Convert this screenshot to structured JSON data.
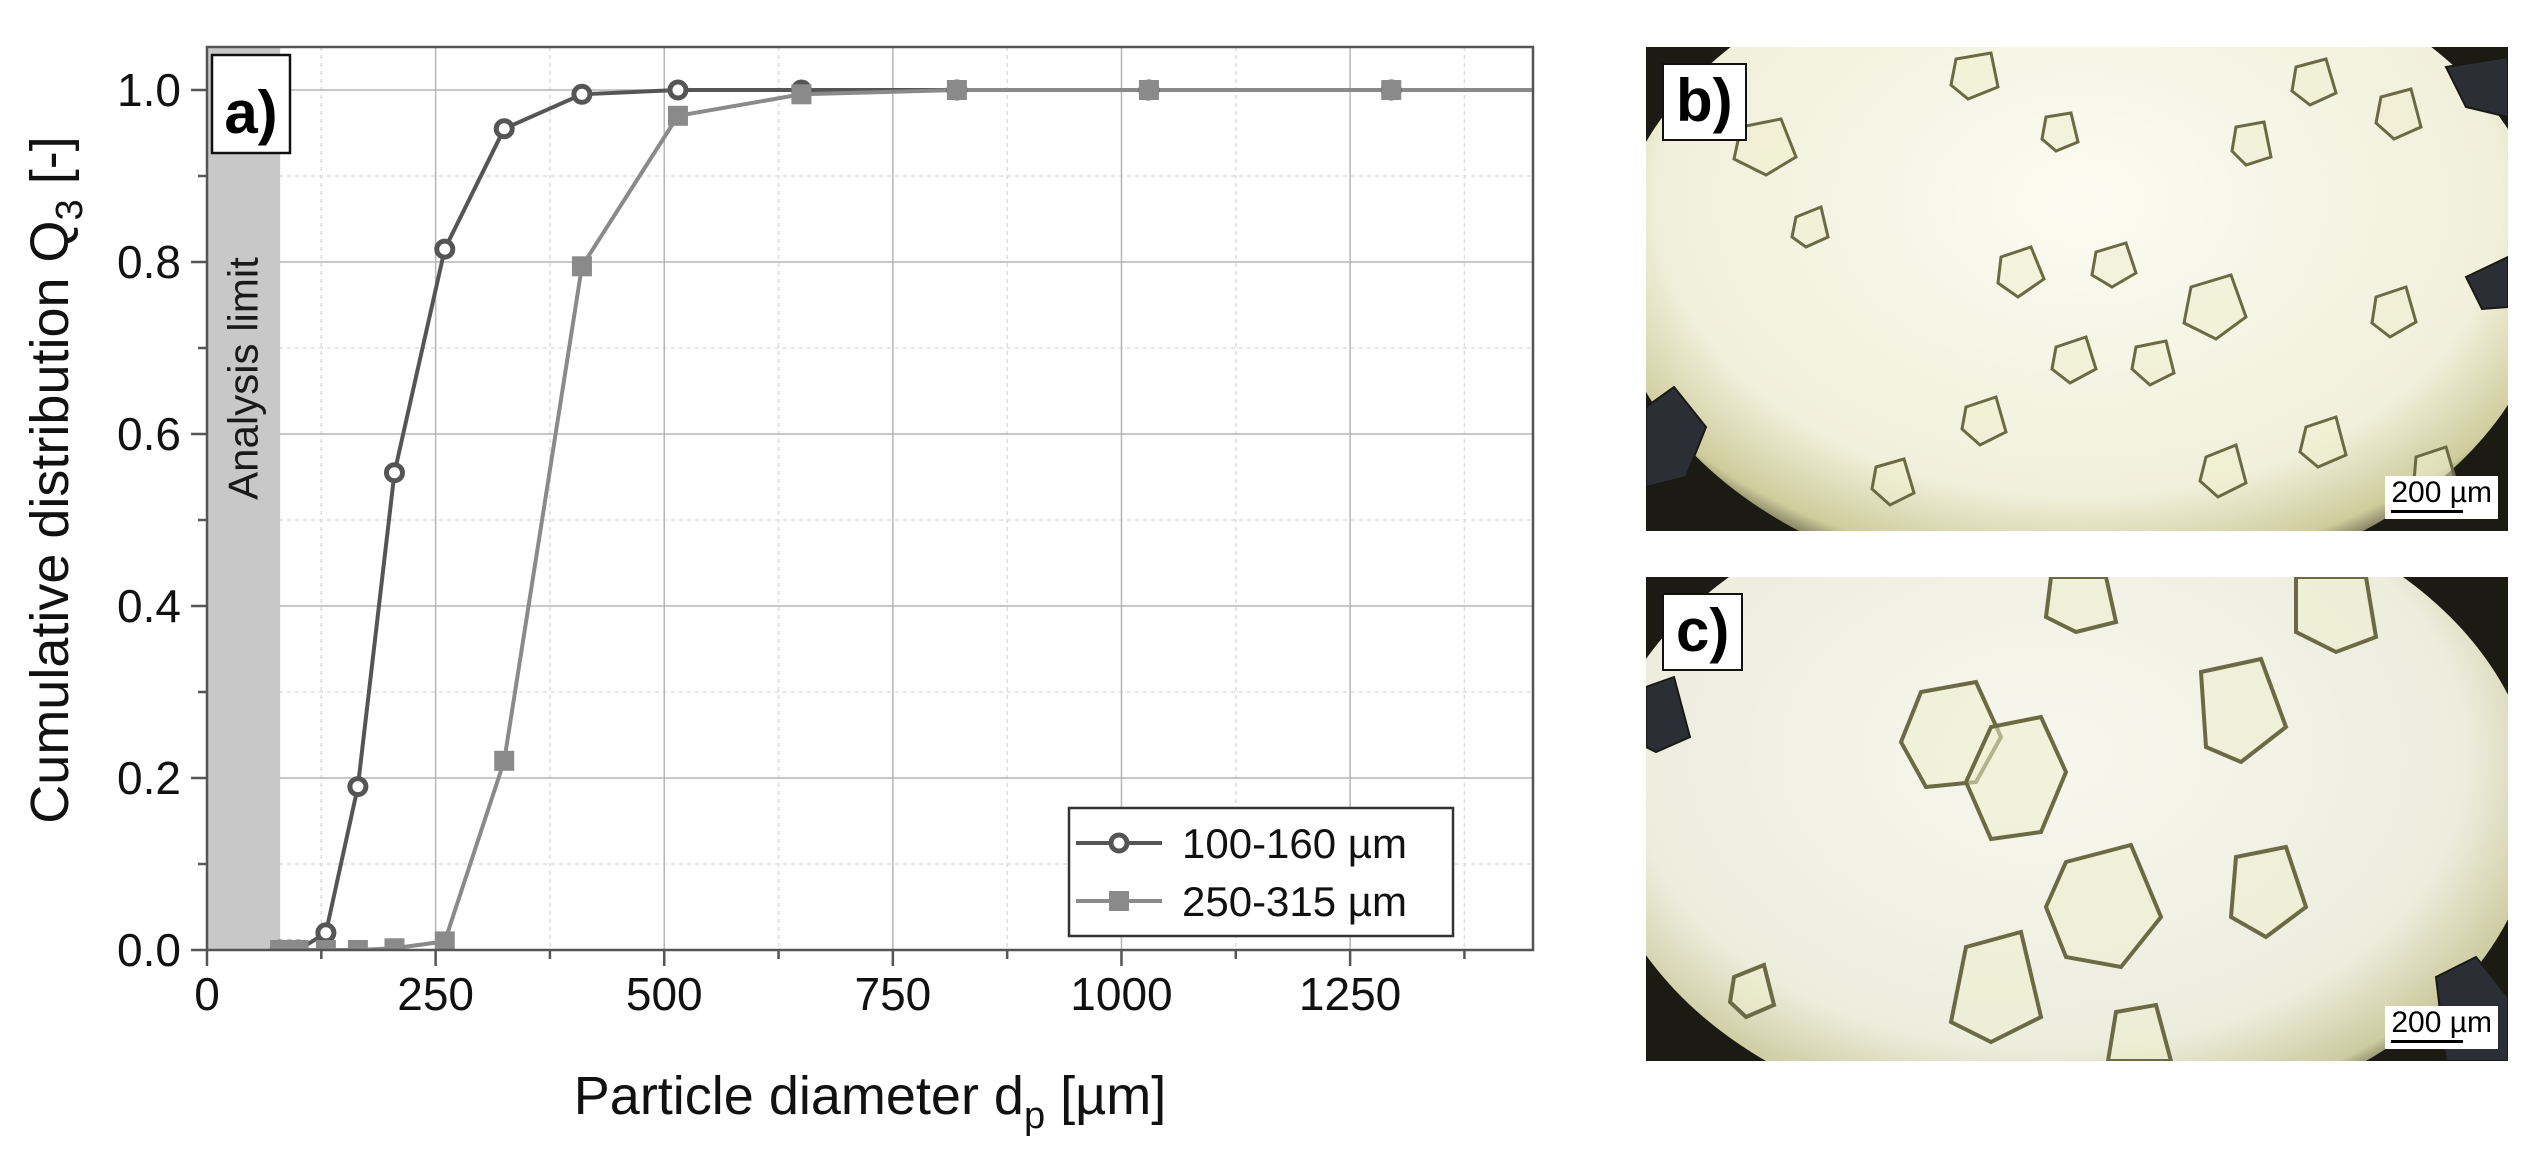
{
  "panel_a": {
    "label": "a)",
    "annotation": "Analysis limit"
  },
  "chart_data": {
    "type": "line",
    "title": "",
    "xlabel_main": "Particle diameter d",
    "xlabel_sub": "p",
    "xlabel_unit": " [µm]",
    "ylabel_main": "Cumulative distribution Q",
    "ylabel_sub": "3",
    "ylabel_unit": " [-]",
    "xlim": [
      0,
      1450
    ],
    "ylim": [
      0,
      1.05
    ],
    "xticks": [
      0,
      250,
      500,
      750,
      1000,
      1250
    ],
    "xtick_labels": [
      "0",
      "250",
      "500",
      "750",
      "1000",
      "1250"
    ],
    "yticks": [
      0,
      0.2,
      0.4,
      0.6,
      0.8,
      1.0
    ],
    "ytick_labels": [
      "0.0",
      "0.2",
      "0.4",
      "0.6",
      "0.8",
      "1.0"
    ],
    "grid": true,
    "legend_position": "bottom-right",
    "shaded_region": {
      "x": [
        0,
        80
      ],
      "label": "Analysis limit",
      "color": "#c8c8c8"
    },
    "series": [
      {
        "name": "100-160 µm",
        "marker": "open-circle",
        "color": "#555555",
        "x": [
          80,
          90,
          100,
          130,
          165,
          205,
          260,
          325,
          410,
          515,
          650,
          820,
          1030,
          1295
        ],
        "y": [
          0.0,
          0.0,
          0.0,
          0.02,
          0.19,
          0.555,
          0.815,
          0.955,
          0.995,
          1.0,
          1.0,
          1.0,
          1.0,
          1.0
        ]
      },
      {
        "name": "250-315 µm",
        "marker": "filled-square",
        "color": "#8a8a8a",
        "x": [
          80,
          90,
          100,
          130,
          165,
          205,
          260,
          325,
          410,
          515,
          650,
          820,
          1030,
          1295
        ],
        "y": [
          0.0,
          0.0,
          0.0,
          0.0,
          0.0,
          0.002,
          0.01,
          0.22,
          0.795,
          0.97,
          0.995,
          1.0,
          1.0,
          1.0
        ]
      }
    ]
  },
  "panel_b": {
    "label": "b)",
    "scale_label": "200 µm"
  },
  "panel_c": {
    "label": "c)",
    "scale_label": "200 µm"
  },
  "colors": {
    "axis": "#555555",
    "grid": "#b5b5b5",
    "grid_minor": "#dddddd",
    "micrograph_background": "#f4f4e4",
    "micrograph_edge": "#1a1a14",
    "crystal_outline": "#6b6a45"
  }
}
